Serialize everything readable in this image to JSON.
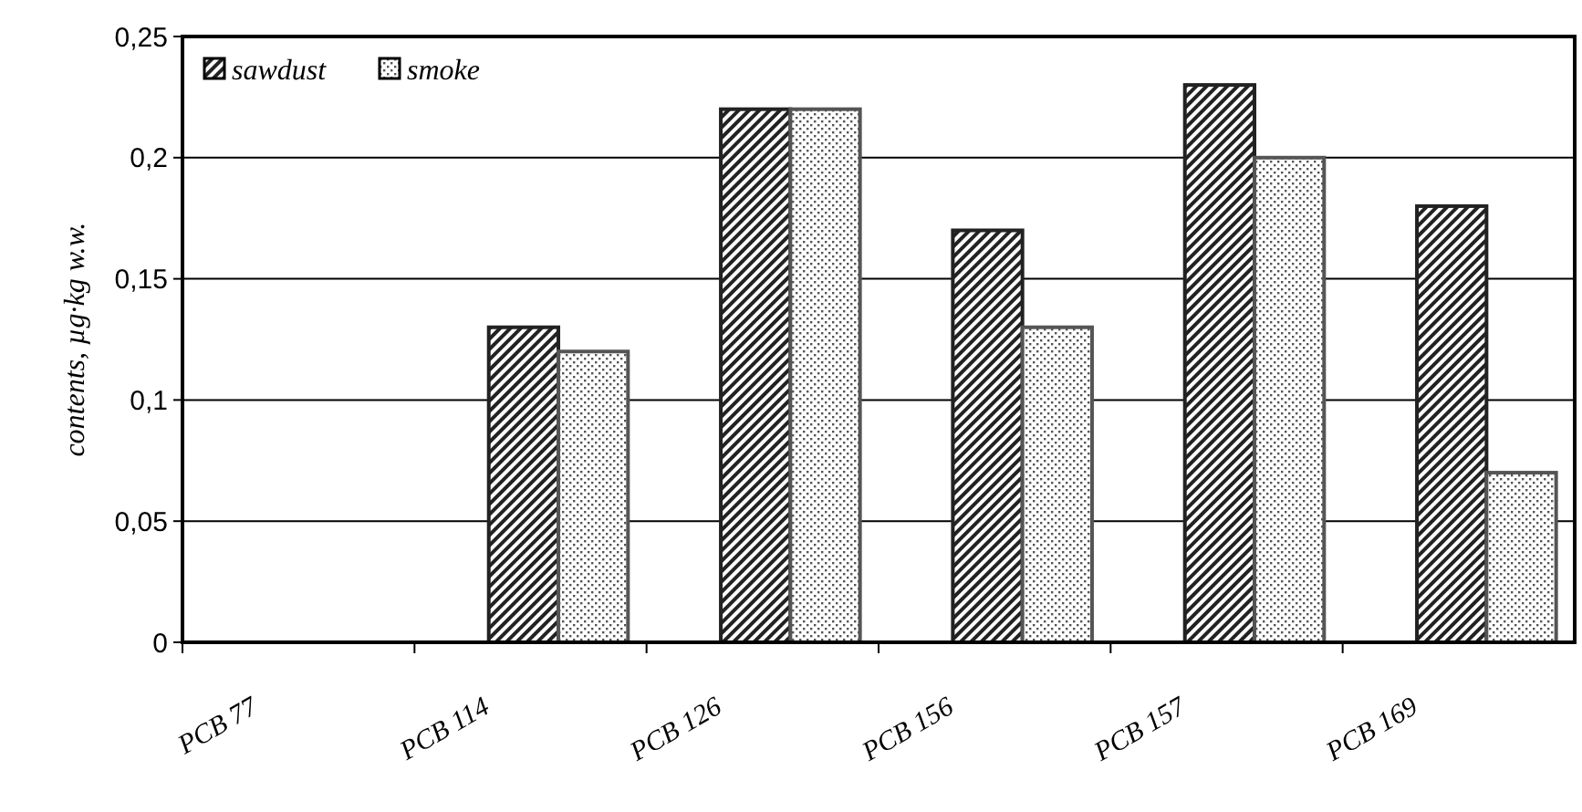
{
  "chart_data": {
    "type": "bar",
    "ylabel": "contents, µg·kg w.w.",
    "categories": [
      "PCB 77",
      "PCB 114",
      "PCB 126",
      "PCB 156",
      "PCB 157",
      "PCB 169"
    ],
    "series": [
      {
        "name": "sawdust",
        "color": "#222222",
        "values": [
          0,
          0.13,
          0.22,
          0.17,
          0.23,
          0.18
        ]
      },
      {
        "name": "smoke",
        "color": "#555555",
        "values": [
          0,
          0.12,
          0.22,
          0.13,
          0.2,
          0.07
        ]
      }
    ],
    "ylim": [
      0,
      0.25
    ],
    "yticks": [
      0,
      {
        "value": 0.05,
        "label": "0,05"
      },
      {
        "value": 0.1,
        "label": "0,1"
      },
      {
        "value": 0.15,
        "label": "0,15"
      },
      {
        "value": 0.2,
        "label": "0,2"
      },
      {
        "value": 0.25,
        "label": "0,25"
      }
    ],
    "grid": "y",
    "legend": "top left"
  }
}
